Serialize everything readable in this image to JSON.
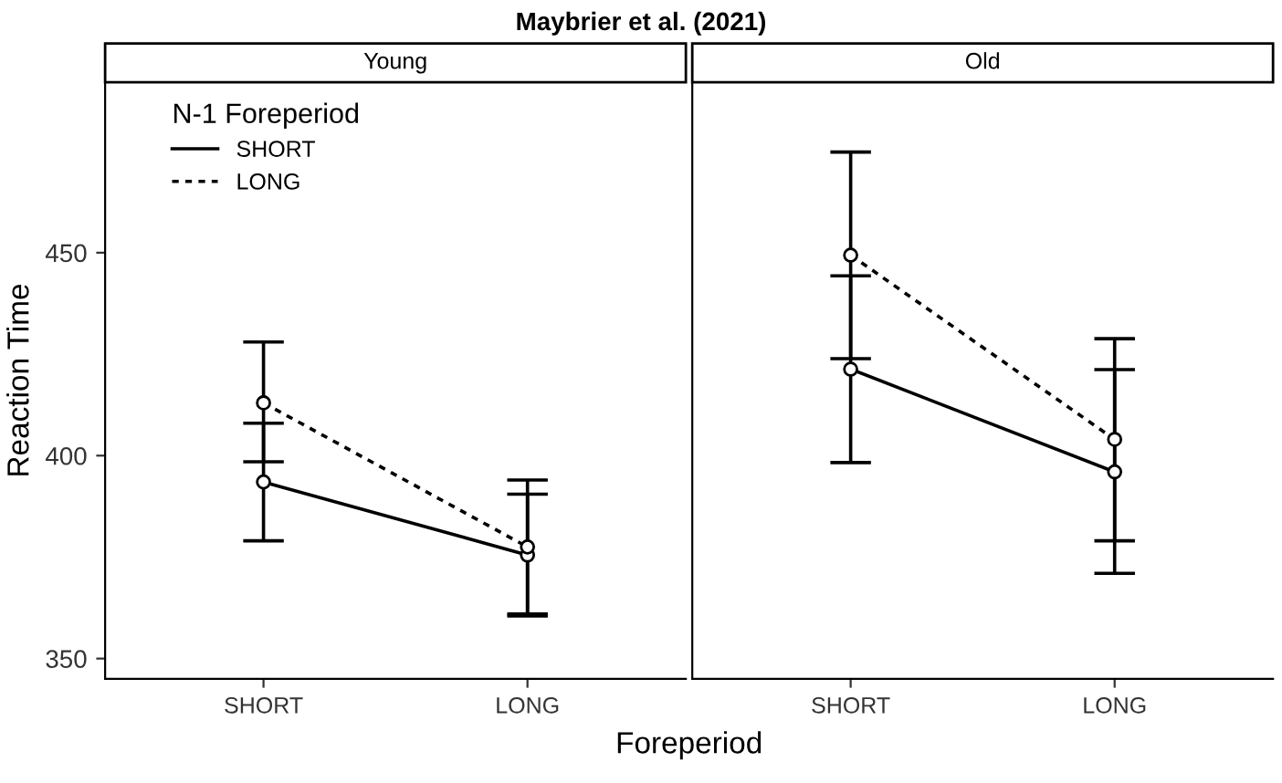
{
  "chart_data": [
    {
      "type": "line",
      "title": "Maybrier et al. (2021)",
      "subtitle": "Young",
      "xlabel": "Foreperiod",
      "ylabel": "Reaction Time",
      "legend_title": "N-1 Foreperiod",
      "legend": "top left",
      "marker": "circle",
      "grid": false,
      "categories": [
        "SHORT",
        "LONG"
      ],
      "ylim": [
        345,
        492
      ],
      "yticks": [
        350,
        400,
        450
      ],
      "series": [
        {
          "name": "SHORT",
          "color": "#000000",
          "line_style": "solid",
          "values": [
            393.5,
            375.5
          ],
          "errors": [
            [
              379,
              408
            ],
            [
              361,
              390.5
            ]
          ]
        },
        {
          "name": "LONG",
          "color": "#000000",
          "line_style": "dotted",
          "values": [
            413,
            377.5
          ],
          "errors": [
            [
              398.5,
              428
            ],
            [
              360.5,
              394
            ]
          ]
        }
      ]
    },
    {
      "type": "line",
      "subtitle": "Old",
      "marker": "circle",
      "grid": false,
      "tick_labels": "x",
      "categories": [
        "SHORT",
        "LONG"
      ],
      "ylim": [
        345,
        492
      ],
      "yticks": [
        350,
        400,
        450
      ],
      "series": [
        {
          "color": "#000000",
          "line_style": "solid",
          "values": [
            421.3,
            396
          ],
          "errors": [
            [
              398.3,
              444.3
            ],
            [
              371,
              421.2
            ]
          ]
        },
        {
          "color": "#000000",
          "line_style": "dotted",
          "values": [
            449.4,
            404
          ],
          "errors": [
            [
              423.9,
              474.8
            ],
            [
              379,
              428.8
            ]
          ]
        }
      ]
    }
  ]
}
